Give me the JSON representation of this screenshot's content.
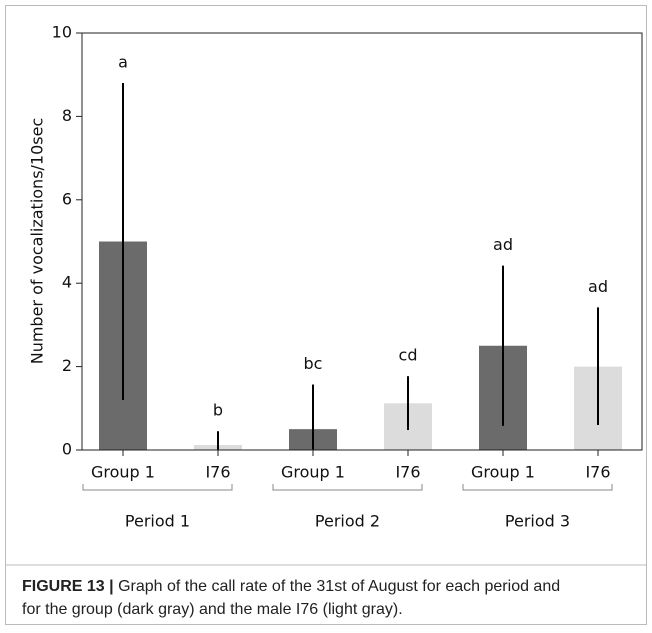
{
  "chart_data": {
    "type": "bar",
    "ylabel": "Number of vocalizations/10sec",
    "categories": [
      "Group 1",
      "I76",
      "Group 1",
      "I76",
      "Group 1",
      "I76"
    ],
    "groups": [
      "Period 1",
      "Period 2",
      "Period 3"
    ],
    "values": [
      5.0,
      0.12,
      0.5,
      1.12,
      2.5,
      2.0
    ],
    "error_low": [
      1.2,
      0,
      0,
      0.48,
      0.58,
      0.6
    ],
    "error_high": [
      8.8,
      0.45,
      1.57,
      1.77,
      4.42,
      3.42
    ],
    "annotations": [
      "a",
      "b",
      "bc",
      "cd",
      "ad",
      "ad"
    ],
    "colors": [
      "#6b6b6b",
      "#dcdcdc",
      "#6b6b6b",
      "#dcdcdc",
      "#6b6b6b",
      "#dcdcdc"
    ],
    "ylim": [
      0,
      10
    ],
    "yticks": [
      0,
      2,
      4,
      6,
      8,
      10
    ],
    "grid": false
  },
  "caption": {
    "label": "FIGURE 13 |",
    "lines": [
      "Graph of the call rate of the 31st of August for each period and",
      "for the group (dark gray) and the male I76 (light gray)."
    ]
  }
}
